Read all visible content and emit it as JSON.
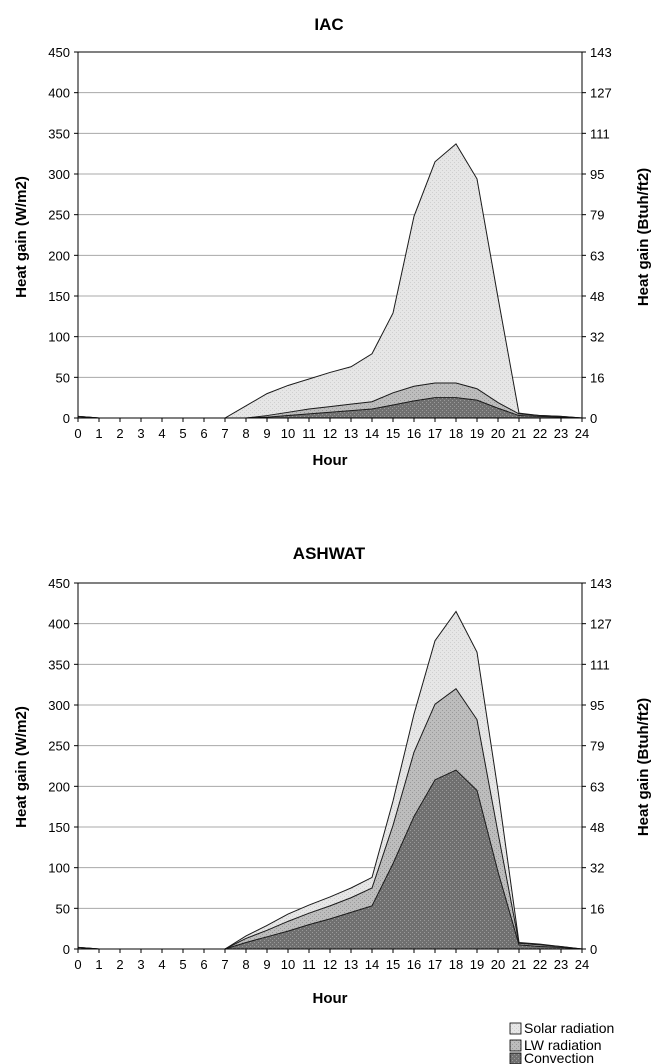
{
  "chart_data": [
    {
      "type": "area",
      "stacked": true,
      "title": "IAC",
      "xlabel": "Hour",
      "ylabel": "Heat gain (W/m2)",
      "y2label": "Heat gain (Btuh/ft2)",
      "x": [
        0,
        1,
        2,
        3,
        4,
        5,
        6,
        7,
        8,
        9,
        10,
        11,
        12,
        13,
        14,
        15,
        16,
        17,
        18,
        19,
        20,
        21,
        22,
        23,
        24
      ],
      "xticks": [
        "0",
        "1",
        "2",
        "3",
        "4",
        "5",
        "6",
        "7",
        "8",
        "9",
        "10",
        "11",
        "12",
        "13",
        "14",
        "15",
        "16",
        "17",
        "18",
        "19",
        "20",
        "21",
        "22",
        "23",
        "24"
      ],
      "ylim": [
        0,
        450
      ],
      "yticks": [
        "0",
        "50",
        "100",
        "150",
        "200",
        "250",
        "300",
        "350",
        "400",
        "450"
      ],
      "y2ticks": [
        "0",
        "16",
        "32",
        "48",
        "63",
        "79",
        "95",
        "111",
        "127",
        "143"
      ],
      "grid": true,
      "series": [
        {
          "name": "Convection",
          "color": "#6e6e6e",
          "values": [
            2,
            0,
            0,
            0,
            0,
            0,
            0,
            0,
            0,
            1,
            3,
            5,
            7,
            9,
            11,
            16,
            21,
            25,
            25,
            22,
            12,
            3,
            2,
            1,
            0
          ]
        },
        {
          "name": "LW radiation",
          "color": "#b4b4b4",
          "values": [
            0,
            0,
            0,
            0,
            0,
            0,
            0,
            0,
            0,
            2,
            4,
            6,
            7,
            8,
            9,
            15,
            18,
            18,
            18,
            14,
            7,
            2,
            1,
            1,
            0
          ]
        },
        {
          "name": "Solar radiation",
          "color": "#e4e4e4",
          "values": [
            0,
            0,
            0,
            0,
            0,
            0,
            0,
            0,
            15,
            27,
            33,
            37,
            42,
            46,
            59,
            98,
            209,
            272,
            294,
            258,
            129,
            1,
            0,
            0,
            0
          ]
        }
      ]
    },
    {
      "type": "area",
      "stacked": true,
      "title": "ASHWAT",
      "xlabel": "Hour",
      "ylabel": "Heat gain (W/m2)",
      "y2label": "Heat gain (Btuh/ft2)",
      "x": [
        0,
        1,
        2,
        3,
        4,
        5,
        6,
        7,
        8,
        9,
        10,
        11,
        12,
        13,
        14,
        15,
        16,
        17,
        18,
        19,
        20,
        21,
        22,
        23,
        24
      ],
      "xticks": [
        "0",
        "1",
        "2",
        "3",
        "4",
        "5",
        "6",
        "7",
        "8",
        "9",
        "10",
        "11",
        "12",
        "13",
        "14",
        "15",
        "16",
        "17",
        "18",
        "19",
        "20",
        "21",
        "22",
        "23",
        "24"
      ],
      "ylim": [
        0,
        450
      ],
      "yticks": [
        "0",
        "50",
        "100",
        "150",
        "200",
        "250",
        "300",
        "350",
        "400",
        "450"
      ],
      "y2ticks": [
        "0",
        "16",
        "32",
        "48",
        "63",
        "79",
        "95",
        "111",
        "127",
        "143"
      ],
      "grid": true,
      "series": [
        {
          "name": "Convection",
          "color": "#6e6e6e",
          "values": [
            2,
            0,
            0,
            0,
            0,
            0,
            0,
            0,
            8,
            15,
            22,
            30,
            37,
            45,
            53,
            105,
            163,
            208,
            220,
            195,
            95,
            5,
            3,
            2,
            0
          ]
        },
        {
          "name": "LW radiation",
          "color": "#b4b4b4",
          "values": [
            0,
            0,
            0,
            0,
            0,
            0,
            0,
            0,
            5,
            8,
            12,
            14,
            16,
            18,
            22,
            47,
            79,
            93,
            100,
            87,
            48,
            2,
            2,
            1,
            0
          ]
        },
        {
          "name": "Solar radiation",
          "color": "#e4e4e4",
          "values": [
            0,
            0,
            0,
            0,
            0,
            0,
            0,
            0,
            3,
            6,
            9,
            10,
            11,
            12,
            13,
            30,
            47,
            78,
            95,
            83,
            52,
            1,
            1,
            0,
            0
          ]
        }
      ]
    }
  ],
  "legend": [
    {
      "label": "Solar radiation",
      "color": "#e4e4e4"
    },
    {
      "label": "LW radiation",
      "color": "#b4b4b4"
    },
    {
      "label": "Convection",
      "color": "#6e6e6e"
    }
  ]
}
